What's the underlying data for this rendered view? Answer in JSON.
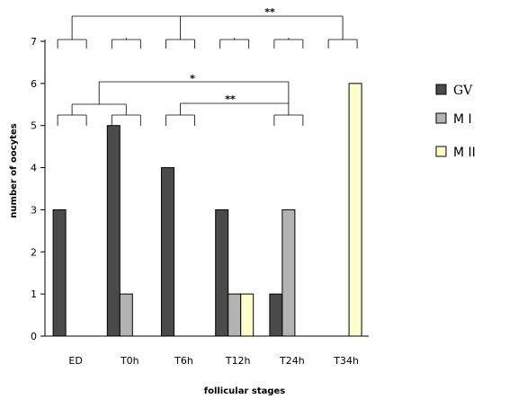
{
  "chart_data": {
    "type": "bar",
    "categories": [
      "ED",
      "T0h",
      "T6h",
      "T12h",
      "T24h",
      "T34h"
    ],
    "series": [
      {
        "name": "GV",
        "color": "#4a4a4a",
        "values": [
          3,
          5,
          4,
          3,
          1,
          0
        ]
      },
      {
        "name": "M I",
        "color": "#b3b3b3",
        "values": [
          0,
          1,
          0,
          1,
          3,
          0
        ]
      },
      {
        "name": "M II",
        "color": "#ffffcc",
        "values": [
          0,
          0,
          0,
          1,
          0,
          6
        ]
      }
    ],
    "xlabel": "follicular stages",
    "ylabel": "number of oocytes",
    "ylim": [
      0,
      7
    ],
    "yticks": [
      "0",
      "1",
      "2",
      "3",
      "4",
      "5",
      "6",
      "7"
    ],
    "grid": false,
    "legend_position": "right",
    "annotations": [
      {
        "label": "**",
        "between": [
          "ED",
          "T34h"
        ]
      },
      {
        "label": "*",
        "between": [
          "ED",
          "T24h"
        ]
      },
      {
        "label": "**",
        "between": [
          "T6h",
          "T24h"
        ]
      }
    ]
  }
}
